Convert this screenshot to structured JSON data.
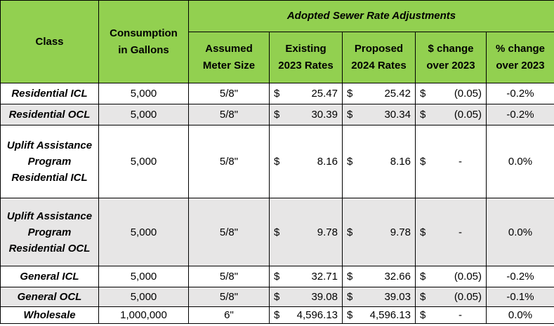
{
  "header": {
    "class": "Class",
    "consumption": [
      "Consumption",
      "in Gallons"
    ],
    "group": "Adopted Sewer Rate Adjustments",
    "meter": [
      "Assumed",
      "Meter Size"
    ],
    "existing": [
      "Existing",
      "2023 Rates"
    ],
    "proposed": [
      "Proposed",
      "2024 Rates"
    ],
    "dollar_change": [
      "$ change",
      "over 2023"
    ],
    "pct_change": [
      "% change",
      "over 2023"
    ]
  },
  "currency_symbol": "$",
  "rows": [
    {
      "class": [
        "Residential ICL"
      ],
      "consumption": "5,000",
      "meter": "5/8\"",
      "existing": "25.47",
      "proposed": "25.42",
      "dollar_change": "(0.05)",
      "pct_change": "-0.2%"
    },
    {
      "class": [
        "Residential OCL"
      ],
      "consumption": "5,000",
      "meter": "5/8\"",
      "existing": "30.39",
      "proposed": "30.34",
      "dollar_change": "(0.05)",
      "pct_change": "-0.2%"
    },
    {
      "class": [
        "Uplift Assistance",
        "Program",
        "Residential ICL"
      ],
      "consumption": "5,000",
      "meter": "5/8\"",
      "existing": "8.16",
      "proposed": "8.16",
      "dollar_change": "-",
      "pct_change": "0.0%"
    },
    {
      "class": [
        "Uplift Assistance",
        "Program",
        "Residential OCL"
      ],
      "consumption": "5,000",
      "meter": "5/8\"",
      "existing": "9.78",
      "proposed": "9.78",
      "dollar_change": "-",
      "pct_change": "0.0%"
    },
    {
      "class": [
        "General ICL"
      ],
      "consumption": "5,000",
      "meter": "5/8\"",
      "existing": "32.71",
      "proposed": "32.66",
      "dollar_change": "(0.05)",
      "pct_change": "-0.2%"
    },
    {
      "class": [
        "General OCL"
      ],
      "consumption": "5,000",
      "meter": "5/8\"",
      "existing": "39.08",
      "proposed": "39.03",
      "dollar_change": "(0.05)",
      "pct_change": "-0.1%"
    },
    {
      "class": [
        "Wholesale"
      ],
      "consumption": "1,000,000",
      "meter": "6\"",
      "existing": "4,596.13",
      "proposed": "4,596.13",
      "dollar_change": "-",
      "pct_change": "0.0%"
    }
  ],
  "colors": {
    "header_bg": "#92d050",
    "shaded_row_bg": "#e7e6e6"
  }
}
